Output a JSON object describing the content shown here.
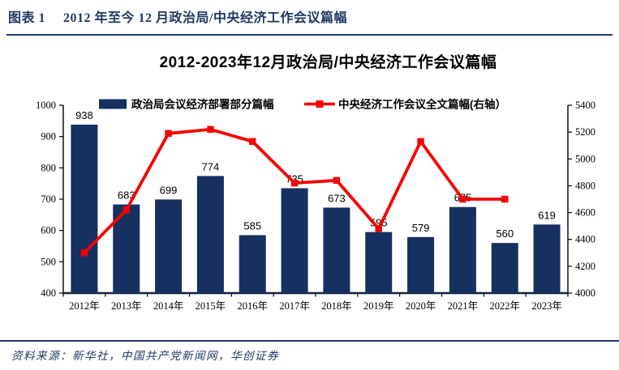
{
  "figure": {
    "label": "图表 1",
    "title": "2012 年至今 12 月政治局/中央经济工作会议篇幅"
  },
  "chart_data": {
    "type": "combo",
    "title": "2012-2023年12月政治局/中央经济工作会议篇幅",
    "categories": [
      "2012年",
      "2013年",
      "2014年",
      "2015年",
      "2016年",
      "2017年",
      "2018年",
      "2019年",
      "2020年",
      "2021年",
      "2022年",
      "2023年"
    ],
    "series": [
      {
        "name": "政治局会议经济部署部分篇幅",
        "type": "bar",
        "axis": "left",
        "color": "#16305f",
        "values": [
          938,
          683,
          699,
          774,
          585,
          735,
          673,
          595,
          579,
          675,
          560,
          619
        ],
        "data_labels": true
      },
      {
        "name": "中央经济工作会议全文篇幅(右轴）",
        "type": "line",
        "axis": "right",
        "color": "#f60000",
        "marker": "square",
        "values": [
          4300,
          4620,
          5190,
          5220,
          5130,
          4820,
          4840,
          4480,
          5130,
          4700,
          4700,
          null
        ]
      }
    ],
    "left_axis": {
      "min": 400,
      "max": 1000,
      "step": 100
    },
    "right_axis": {
      "min": 4000,
      "max": 5400,
      "step": 200
    },
    "grid": false,
    "legend_position": "top-center"
  },
  "footer": {
    "source": "资料来源：新华社，中国共产党新闻网，华创证券"
  }
}
